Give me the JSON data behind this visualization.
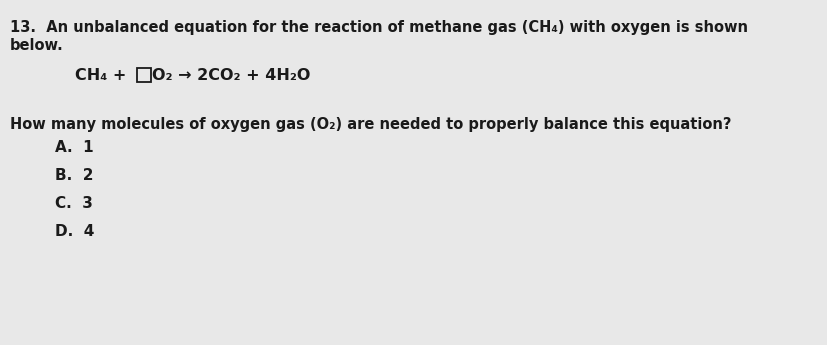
{
  "background_color": "#e8e8e8",
  "title_line1": "13.  An unbalanced equation for the reaction of methane gas (CH₄) with oxygen is shown",
  "title_line2": "below.",
  "eq_part1": "CH₄ +",
  "eq_part2": "O₂ → 2CO₂ + 4H₂O",
  "question_text": "How many molecules of oxygen gas (O₂) are needed to properly balance this equation?",
  "choices": [
    "A.  1",
    "B.  2",
    "C.  3",
    "D.  4"
  ],
  "text_color": "#1a1a1a",
  "font_size_title": 10.5,
  "font_size_equation": 11.5,
  "font_size_question": 10.5,
  "font_size_choices": 11.0
}
